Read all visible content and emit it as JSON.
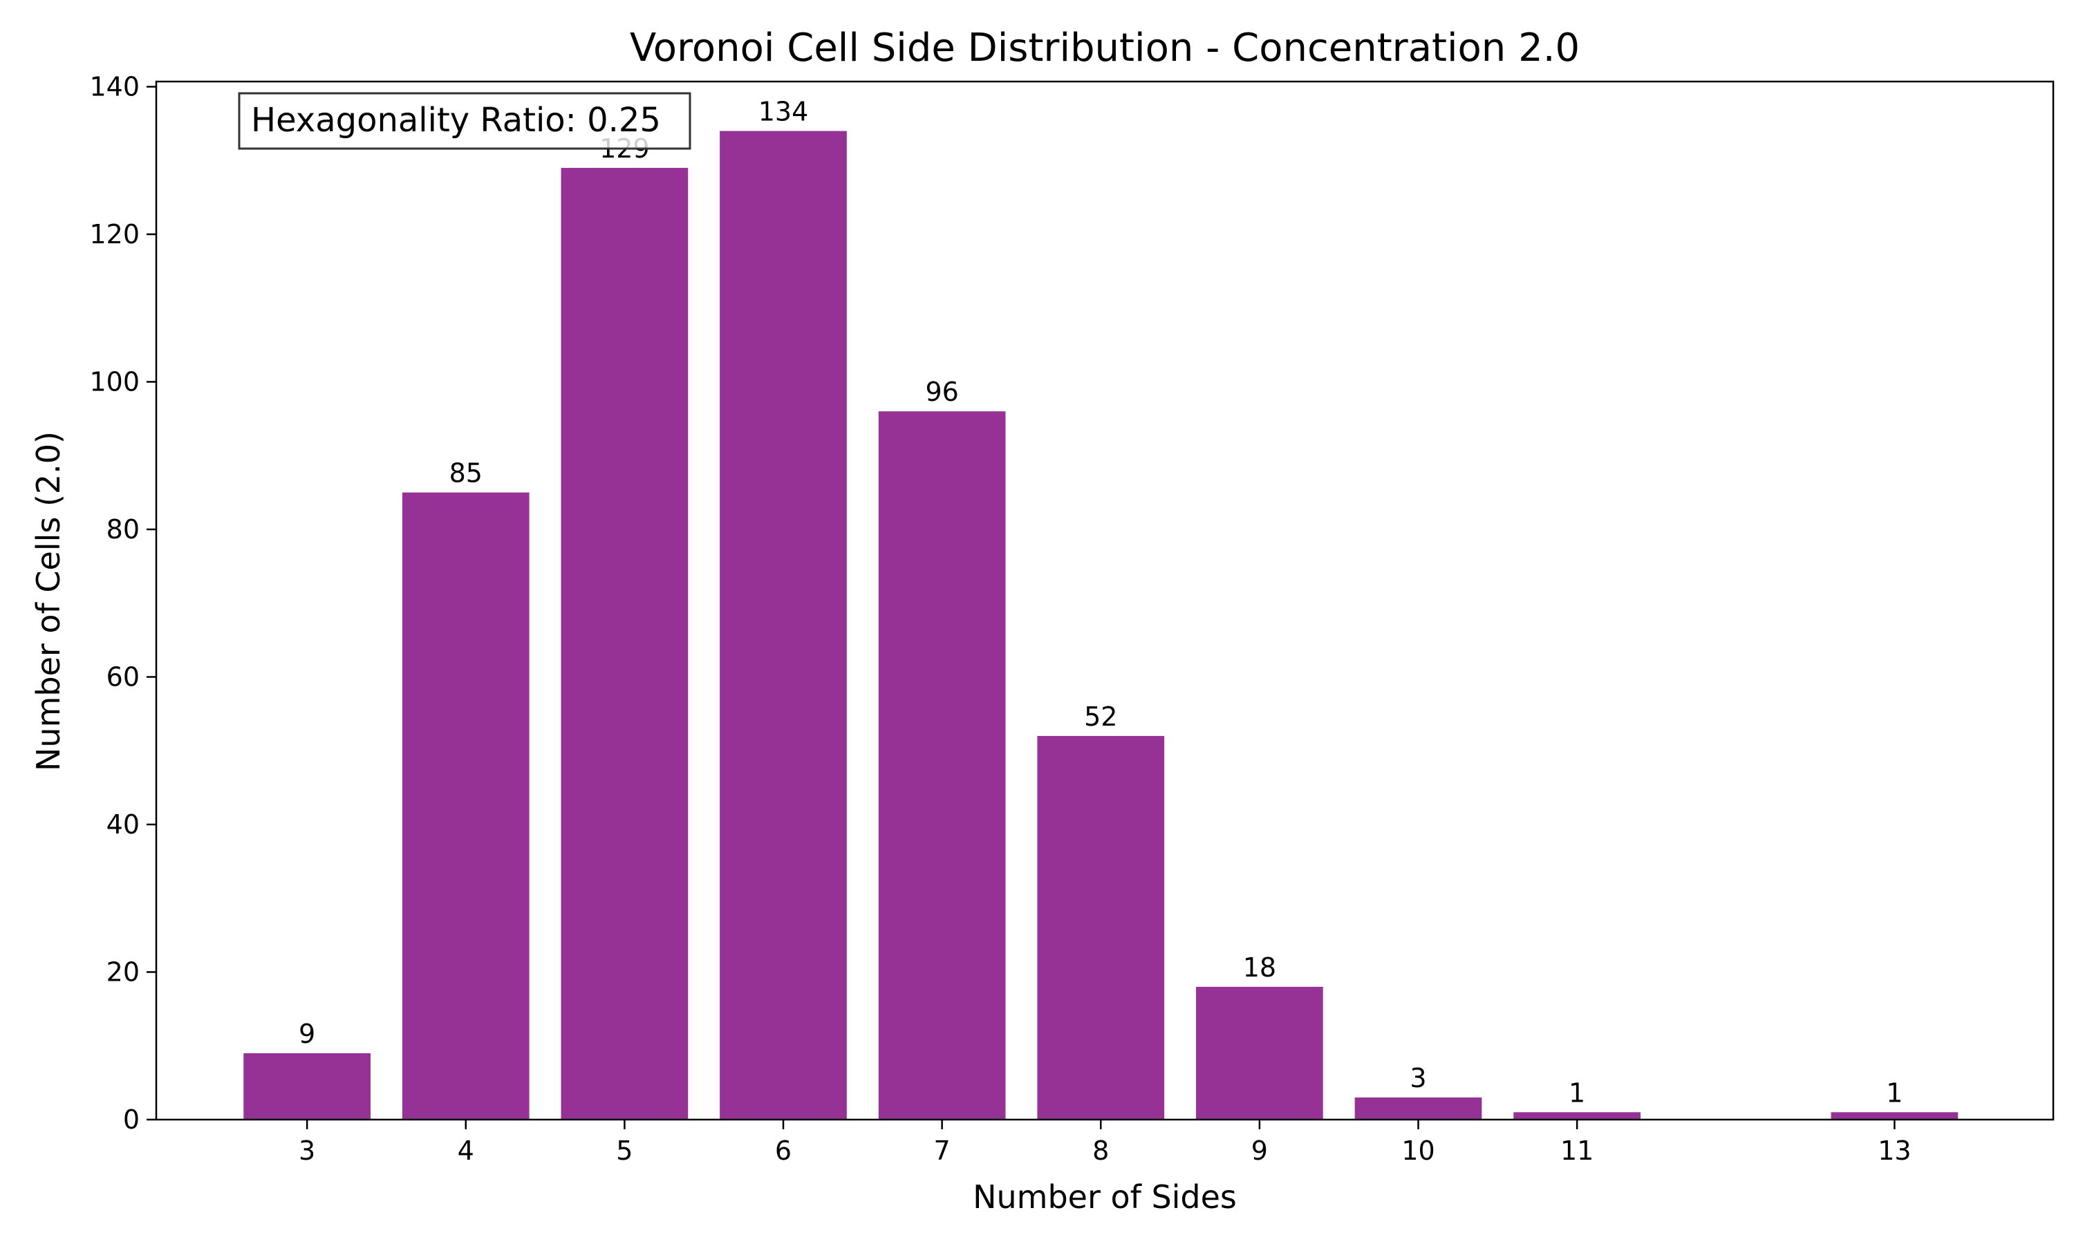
{
  "chart_data": {
    "type": "bar",
    "title": "Voronoi Cell Side Distribution - Concentration 2.0",
    "xlabel": "Number of Sides",
    "ylabel": "Number of Cells (2.0)",
    "x": [
      3,
      4,
      5,
      6,
      7,
      8,
      9,
      10,
      11,
      13
    ],
    "values": [
      9,
      85,
      129,
      134,
      96,
      52,
      18,
      3,
      1,
      1
    ],
    "value_labels": [
      "9",
      "85",
      "129",
      "134",
      "96",
      "52",
      "18",
      "3",
      "1",
      "1"
    ],
    "xticks": [
      "3",
      "4",
      "5",
      "6",
      "7",
      "8",
      "9",
      "10",
      "11",
      "13"
    ],
    "yticks": [
      "0",
      "20",
      "40",
      "60",
      "80",
      "100",
      "120",
      "140"
    ],
    "ytick_values": [
      0,
      20,
      40,
      60,
      80,
      100,
      120,
      140
    ],
    "xlim": [
      2.05,
      14.0
    ],
    "ylim": [
      0,
      140.7
    ],
    "bar_width": 0.8,
    "bar_color": "#963296",
    "grid": false,
    "annotation": {
      "text": "Hexagonality Ratio: 0.25",
      "placement": "top-left"
    }
  }
}
